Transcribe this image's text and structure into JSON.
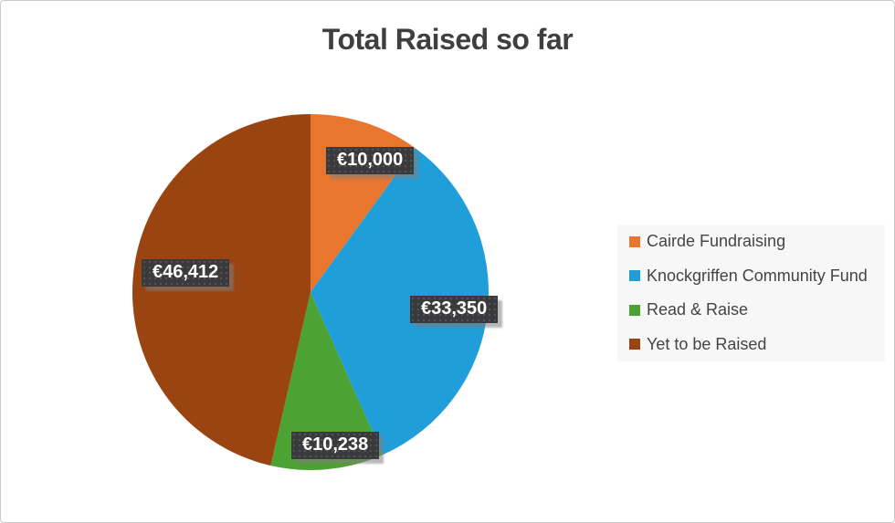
{
  "chart_data": {
    "type": "pie",
    "title": "Total Raised so far",
    "categories": [
      "Cairde Fundraising",
      "Knockgriffen Community Fund",
      "Read & Raise",
      "Yet to be Raised"
    ],
    "values": [
      10000,
      33350,
      10238,
      46412
    ],
    "value_labels": [
      "€10,000",
      "€33,350",
      "€10,238",
      "€46,412"
    ],
    "colors": [
      "#E8762D",
      "#1F9ED9",
      "#4CA232",
      "#9A4511"
    ],
    "currency_symbol": "€",
    "start_angle_deg": 0,
    "direction": "clockwise",
    "legend_position": "right",
    "title_color": "#3F3F3F",
    "label_box_color": "#3A3A3C",
    "label_text_color": "#FFFFFF"
  }
}
